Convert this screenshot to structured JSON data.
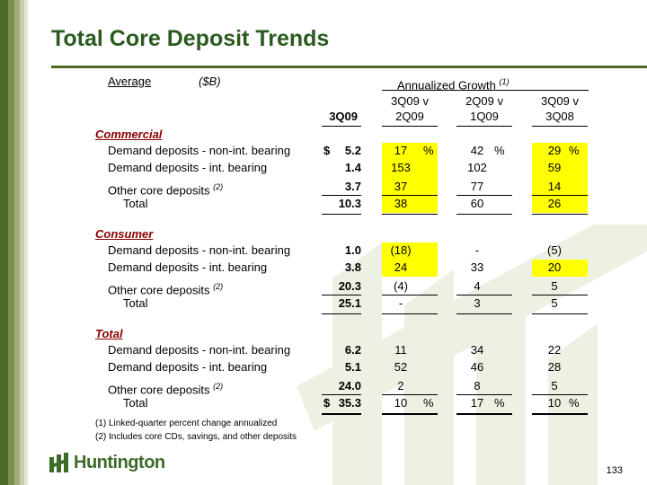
{
  "title": "Total Core Deposit Trends",
  "header": {
    "average": "Average",
    "unit": "($B)",
    "annualized_growth": "Annualized Growth",
    "annualized_note": "(1)",
    "col_3q09": "3Q09",
    "col_a_1": "3Q09 v",
    "col_a_2": "2Q09",
    "col_b_1": "2Q09 v",
    "col_b_2": "1Q09",
    "col_c_1": "3Q09 v",
    "col_c_2": "3Q08"
  },
  "sections": [
    {
      "name": "Commercial",
      "rows": [
        {
          "label": "Demand deposits - non-int. bearing",
          "note": "",
          "dollar": "$",
          "value": "5.2",
          "a": "17",
          "a_pct": "%",
          "b": "42",
          "b_pct": "%",
          "c": "29",
          "c_pct": "%"
        },
        {
          "label": "Demand deposits - int. bearing",
          "note": "",
          "dollar": "",
          "value": "1.4",
          "a": "153",
          "a_pct": "",
          "b": "102",
          "b_pct": "",
          "c": "59",
          "c_pct": ""
        },
        {
          "label": "Other core deposits",
          "note": "(2)",
          "dollar": "",
          "value": "3.7",
          "a": "37",
          "a_pct": "",
          "b": "77",
          "b_pct": "",
          "c": "14",
          "c_pct": ""
        },
        {
          "label": "Total",
          "note": "",
          "dollar": "",
          "value": "10.3",
          "a": "38",
          "a_pct": "",
          "b": "60",
          "b_pct": "",
          "c": "26",
          "c_pct": ""
        }
      ]
    },
    {
      "name": "Consumer",
      "rows": [
        {
          "label": "Demand deposits - non-int. bearing",
          "note": "",
          "dollar": "",
          "value": "1.0",
          "a": "(18)",
          "a_pct": "",
          "b": "-",
          "b_pct": "",
          "c": "(5)",
          "c_pct": ""
        },
        {
          "label": "Demand deposits - int. bearing",
          "note": "",
          "dollar": "",
          "value": "3.8",
          "a": "24",
          "a_pct": "",
          "b": "33",
          "b_pct": "",
          "c": "20",
          "c_pct": ""
        },
        {
          "label": "Other core deposits",
          "note": "(2)",
          "dollar": "",
          "value": "20.3",
          "a": "(4)",
          "a_pct": "",
          "b": "4",
          "b_pct": "",
          "c": "5",
          "c_pct": ""
        },
        {
          "label": "Total",
          "note": "",
          "dollar": "",
          "value": "25.1",
          "a": "-",
          "a_pct": "",
          "b": "3",
          "b_pct": "",
          "c": "5",
          "c_pct": ""
        }
      ]
    },
    {
      "name": "Total",
      "rows": [
        {
          "label": "Demand deposits - non-int. bearing",
          "note": "",
          "dollar": "",
          "value": "6.2",
          "a": "11",
          "a_pct": "",
          "b": "34",
          "b_pct": "",
          "c": "22",
          "c_pct": ""
        },
        {
          "label": "Demand deposits - int. bearing",
          "note": "",
          "dollar": "",
          "value": "5.1",
          "a": "52",
          "a_pct": "",
          "b": "46",
          "b_pct": "",
          "c": "28",
          "c_pct": ""
        },
        {
          "label": "Other core deposits",
          "note": "(2)",
          "dollar": "",
          "value": "24.0",
          "a": "2",
          "a_pct": "",
          "b": "8",
          "b_pct": "",
          "c": "5",
          "c_pct": ""
        },
        {
          "label": "Total",
          "note": "",
          "dollar": "$",
          "value": "35.3",
          "a": "10",
          "a_pct": "%",
          "b": "17",
          "b_pct": "%",
          "c": "10",
          "c_pct": "%"
        }
      ]
    }
  ],
  "footnotes": [
    "(1) Linked-quarter percent change annualized",
    "(2) Includes core CDs, savings, and other deposits"
  ],
  "logo_text": "Huntington",
  "page_number": "133",
  "colors": {
    "title": "#2b5a1e",
    "section": "#8b0000",
    "highlight": "#ffff00",
    "brand": "#4d6b25"
  }
}
